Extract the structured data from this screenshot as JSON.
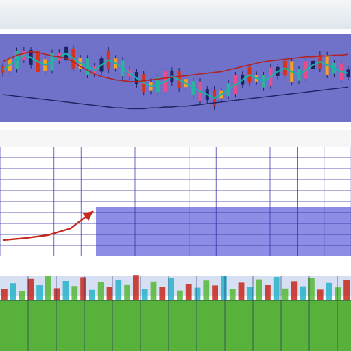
{
  "top_bar": {
    "row1_text": "",
    "row2_text": ""
  },
  "mid_header": {
    "label": "",
    "tick_labels": []
  },
  "volume_header": {
    "label": ""
  },
  "chart_data": [
    {
      "type": "line",
      "panel": "price",
      "colors": {
        "background": "#6f72c8",
        "line_teal": "#16b5a6",
        "line_red": "#b32222",
        "line_navy": "#1d2360",
        "candle_colors": [
          "#d9321b",
          "#f4a11c",
          "#2fb0a0",
          "#e64d8a",
          "#1d2360"
        ]
      },
      "x": [
        0,
        1,
        2,
        3,
        4,
        5,
        6,
        7,
        8,
        9,
        10,
        11,
        12,
        13,
        14,
        15,
        16,
        17,
        18,
        19,
        20,
        21,
        22,
        23,
        24,
        25,
        26,
        27,
        28,
        29,
        30,
        31,
        32,
        33,
        34,
        35,
        36,
        37,
        38,
        39,
        40,
        41,
        42,
        43,
        44,
        45,
        46,
        47,
        48,
        49
      ],
      "series": [
        {
          "values": [
            60,
            66,
            72,
            78,
            75,
            70,
            66,
            70,
            76,
            80,
            74,
            68,
            64,
            60,
            66,
            72,
            68,
            62,
            56,
            50,
            44,
            40,
            42,
            46,
            52,
            48,
            44,
            38,
            34,
            30,
            26,
            30,
            36,
            42,
            48,
            54,
            50,
            46,
            52,
            58,
            62,
            58,
            54,
            60,
            66,
            70,
            66,
            62,
            58,
            56
          ]
        },
        {
          "values": [
            70,
            74,
            78,
            80,
            82,
            81,
            79,
            77,
            76,
            74,
            70,
            64,
            60,
            55,
            52,
            50,
            48,
            47,
            46,
            46,
            47,
            48,
            49,
            50,
            51,
            52,
            53,
            54,
            55,
            56,
            57,
            58,
            60,
            62,
            64,
            66,
            68,
            70,
            71,
            72,
            73,
            74,
            75,
            76,
            76,
            77,
            77,
            78,
            78,
            79
          ]
        },
        {
          "values": [
            30,
            29,
            28,
            27,
            26,
            25,
            24,
            23,
            22,
            21,
            20,
            19,
            18,
            17,
            16,
            15,
            14,
            14,
            13,
            13,
            13,
            14,
            14,
            15,
            15,
            16,
            16,
            17,
            18,
            19,
            20,
            21,
            22,
            23,
            24,
            25,
            26,
            27,
            28,
            29,
            30,
            31,
            32,
            33,
            34,
            35,
            36,
            37,
            38,
            39
          ]
        }
      ],
      "ylim": [
        0,
        100
      ]
    },
    {
      "type": "line",
      "panel": "grid",
      "colors": {
        "grid_fill": "#8d8de6",
        "line": "#c8281b"
      },
      "x": [
        0,
        1,
        2,
        3,
        4
      ],
      "series": [
        {
          "values": [
            20,
            24,
            30,
            44,
            80
          ]
        }
      ],
      "ylim": [
        0,
        100
      ]
    },
    {
      "type": "bar",
      "panel": "volume",
      "colors": {
        "bar_red": "#c8281b",
        "bar_cyan": "#27b3c9",
        "bar_green": "#56b936",
        "ground": "#57b13b"
      },
      "x": [
        0,
        1,
        2,
        3,
        4,
        5,
        6,
        7,
        8,
        9,
        10,
        11,
        12,
        13,
        14,
        15,
        16,
        17,
        18,
        19,
        20,
        21,
        22,
        23,
        24,
        25,
        26,
        27,
        28,
        29,
        30,
        31,
        32,
        33,
        34,
        35,
        36,
        37,
        38,
        39
      ],
      "values": [
        40,
        62,
        35,
        78,
        55,
        90,
        44,
        70,
        52,
        84,
        38,
        66,
        48,
        75,
        58,
        92,
        42,
        68,
        50,
        80,
        36,
        60,
        46,
        72,
        54,
        88,
        40,
        64,
        49,
        76,
        57,
        85,
        43,
        69,
        51,
        82,
        39,
        63,
        47,
        74
      ],
      "ylim": [
        0,
        100
      ]
    }
  ]
}
